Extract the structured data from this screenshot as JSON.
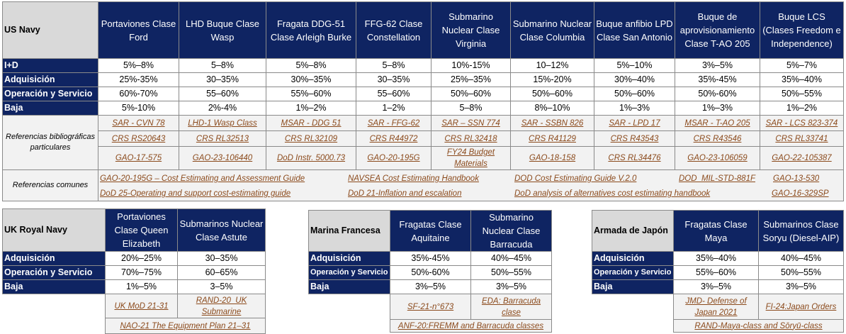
{
  "us_table": {
    "corner": "US Navy",
    "columns": [
      "Portaviones Clase Ford",
      "LHD Buque Clase Wasp",
      "Fragata DDG-51 Clase Arleigh Burke",
      "FFG-62 Clase Constellation",
      "Submarino Nuclear Clase Virginia",
      "Submarino Nuclear Clase Columbia",
      "Buque anfibio LPD Clase San Antonio",
      "Buque de aprovisionamiento Clase T-AO 205",
      "Buque LCS (Clases Freedom e Independence)"
    ],
    "rows": [
      {
        "label": "I+D",
        "values": [
          "5%–8%",
          "5–8%",
          "5%–8%",
          "5–8%",
          "10%-15%",
          "10–12%",
          "5%–10%",
          "3%–5%",
          "5%–7%"
        ]
      },
      {
        "label": "Adquisición",
        "values": [
          "25%-35%",
          "30–35%",
          "30%–35%",
          "30–35%",
          "25%–35%",
          "15%-20%",
          "30%–40%",
          "35%-45%",
          "35%–40%"
        ]
      },
      {
        "label": "Operación y Servicio",
        "values": [
          "60%-70%",
          "55–60%",
          "55%–60%",
          "55–60%",
          "50%–60%",
          "50%–60%",
          "50%–60%",
          "50%-60%",
          "50%–55%"
        ]
      },
      {
        "label": "Baja",
        "values": [
          "5%-10%",
          "2%-4%",
          "1%–2%",
          "1–2%",
          "5–8%",
          "8%–10%",
          "1%–3%",
          "1%–3%",
          "1%–2%"
        ]
      }
    ],
    "refs_label": "Referencias bibliográficas particulares",
    "refs": [
      [
        "SAR - CVN 78",
        "LHD-1 Wasp Class",
        "MSAR - DDG 51",
        "SAR - FFG-62",
        "SAR – SSN 774",
        "SAR - SSBN 826",
        "SAR - LPD 17",
        "MSAR - T-AO 205",
        "SAR - LCS 823-374"
      ],
      [
        "CRS RS20643",
        "CRS RL32513",
        "CRS RL32109",
        "CRS R44972",
        "CRS RL32418",
        "CRS R41129",
        "CRS R43543",
        "CRS R43546",
        "CRS RL33741"
      ],
      [
        "GAO-17-575",
        "GAO-23-106440",
        "DoD Instr. 5000.73",
        "GAO-20-195G",
        "FY24 Budget Materials",
        "GAO-18-158",
        "CRS RL34476",
        "GAO-23-106059",
        "GAO-22-105387"
      ]
    ],
    "common_label": "Referencias comunes",
    "common_refs": [
      [
        "GAO-20-195G – Cost Estimating and Assessment Guide",
        "NAVSEA Cost Estimating Handbook",
        "DOD Cost Estimating Guide V.2.0",
        "DOD_MIL-STD-881F",
        "GAO-13-530"
      ],
      [
        "DoD 25-Operating and support cost-estimating guide",
        "DoD 21-Inflation and escalation",
        "DoD analysis of alternatives cost estimating handbook",
        "GAO-16-329SP"
      ]
    ]
  },
  "uk_table": {
    "corner": "UK Royal Navy",
    "columns": [
      "Portaviones Clase Queen Elizabeth",
      "Submarinos Nuclear Clase Astute"
    ],
    "rows": [
      {
        "label": "Adquisición",
        "values": [
          "20%–25%",
          "30–35%"
        ]
      },
      {
        "label": "Operación y Servicio",
        "values": [
          "70%–75%",
          "60–65%"
        ]
      },
      {
        "label": "Baja",
        "values": [
          "1%–5%",
          "3–5%"
        ]
      }
    ],
    "refs": [
      "UK MoD 21-31",
      "RAND-20_UK Submarine"
    ],
    "common_ref": "NAO-21 The Equipment Plan 21–31"
  },
  "fr_table": {
    "corner": "Marina Francesa",
    "columns": [
      "Fragatas Clase Aquitaine",
      "Submarino Nuclear Clase Barracuda"
    ],
    "rows": [
      {
        "label": "Adquisición",
        "values": [
          "35%-45%",
          "40%–45%"
        ]
      },
      {
        "label": "Operación y Servicio",
        "values": [
          "50%-60%",
          "50%–55%"
        ]
      },
      {
        "label": "Baja",
        "values": [
          "3%–5%",
          "3%–5%"
        ]
      }
    ],
    "refs": [
      "SF-21-n°673",
      "EDA: Barracuda clase"
    ],
    "common_ref": "ANF-20:FREMM and Barracuda classes"
  },
  "jp_table": {
    "corner": "Armada de Japón",
    "columns": [
      "Fragatas Clase Maya",
      "Submarinos Clase Soryu (Diesel-AIP)"
    ],
    "rows": [
      {
        "label": "Adquisición",
        "values": [
          "35%–40%",
          "40%–45%"
        ]
      },
      {
        "label": "Operación y Servicio",
        "values": [
          "55%–60%",
          "50%–55%"
        ]
      },
      {
        "label": "Baja",
        "values": [
          "3%–5%",
          "3%–5%"
        ]
      }
    ],
    "refs": [
      "JMD- Defense of Japan 2021",
      "FI-24:Japan Orders"
    ],
    "common_ref": "RAND-Maya-class and Sōryū-class"
  }
}
